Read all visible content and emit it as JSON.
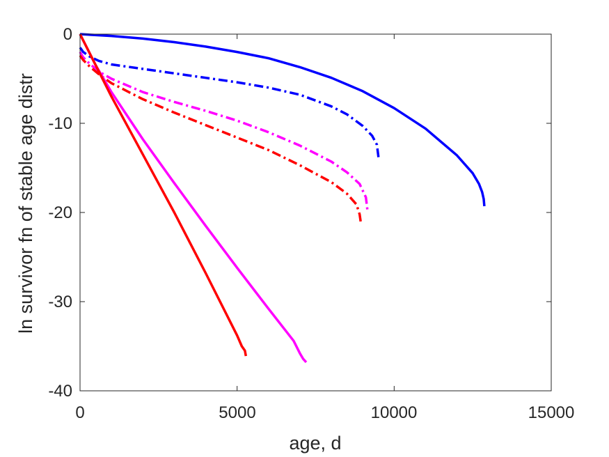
{
  "chart_data": {
    "type": "line",
    "xlabel": "age, d",
    "ylabel": "ln survivor fn of stable age distr",
    "xlim": [
      0,
      15000
    ],
    "ylim": [
      -40,
      0
    ],
    "xticks": [
      0,
      5000,
      10000,
      15000
    ],
    "yticks": [
      0,
      -10,
      -20,
      -30,
      -40
    ],
    "xtick_labels": [
      "0",
      "5000",
      "10000",
      "15000"
    ],
    "ytick_labels": [
      "0",
      "-10",
      "-20",
      "-30",
      "-40"
    ],
    "grid": false,
    "series": [
      {
        "color": "#0000ff",
        "style": "solid",
        "x": [
          0,
          1000,
          2000,
          3000,
          4000,
          5000,
          6000,
          7000,
          8000,
          9000,
          10000,
          11000,
          12000,
          12500,
          12700,
          12800,
          12850,
          12870
        ],
        "y": [
          0,
          -0.2,
          -0.5,
          -0.9,
          -1.4,
          -2.0,
          -2.7,
          -3.7,
          -4.9,
          -6.4,
          -8.3,
          -10.6,
          -13.6,
          -15.6,
          -16.8,
          -17.7,
          -18.5,
          -19.3
        ]
      },
      {
        "color": "#0000ff",
        "style": "dashdot",
        "x": [
          0,
          100,
          300,
          600,
          1000,
          2000,
          3000,
          4000,
          5000,
          6000,
          7000,
          8000,
          8500,
          9000,
          9300,
          9450,
          9500
        ],
        "y": [
          -1.5,
          -2.0,
          -2.5,
          -3.0,
          -3.4,
          -3.9,
          -4.4,
          -4.9,
          -5.4,
          -6.0,
          -6.8,
          -8.1,
          -9.0,
          -10.3,
          -11.4,
          -12.4,
          -13.8
        ]
      },
      {
        "color": "#ff00ff",
        "style": "dashdot",
        "x": [
          0,
          100,
          300,
          600,
          1000,
          2000,
          3000,
          4000,
          5000,
          6000,
          7000,
          8000,
          8500,
          8900,
          9100,
          9150
        ],
        "y": [
          -2.0,
          -2.6,
          -3.3,
          -4.2,
          -5.0,
          -6.5,
          -7.6,
          -8.6,
          -9.7,
          -11.0,
          -12.5,
          -14.3,
          -15.5,
          -16.8,
          -18.3,
          -19.8
        ]
      },
      {
        "color": "#ff0000",
        "style": "dashdot",
        "x": [
          0,
          100,
          300,
          600,
          1000,
          2000,
          3000,
          4000,
          5000,
          6000,
          7000,
          8000,
          8500,
          8800,
          8900,
          8950
        ],
        "y": [
          -2.4,
          -2.9,
          -3.6,
          -4.5,
          -5.5,
          -7.3,
          -8.8,
          -10.2,
          -11.6,
          -13.0,
          -14.7,
          -16.6,
          -17.9,
          -19.1,
          -20.2,
          -21.4
        ]
      },
      {
        "color": "#ff00ff",
        "style": "solid",
        "x": [
          0,
          500,
          1000,
          2000,
          3000,
          4000,
          5000,
          6000,
          6800,
          7000,
          7100,
          7200
        ],
        "y": [
          0,
          -3.5,
          -6.5,
          -11.8,
          -16.7,
          -21.5,
          -26.2,
          -30.8,
          -34.4,
          -35.8,
          -36.4,
          -36.8
        ]
      },
      {
        "color": "#ff0000",
        "style": "solid",
        "x": [
          0,
          500,
          1000,
          2000,
          3000,
          4000,
          5000,
          5150,
          5250,
          5280
        ],
        "y": [
          0,
          -3.5,
          -7.0,
          -13.5,
          -20.0,
          -26.8,
          -33.8,
          -35.0,
          -35.5,
          -36.1
        ]
      }
    ]
  }
}
